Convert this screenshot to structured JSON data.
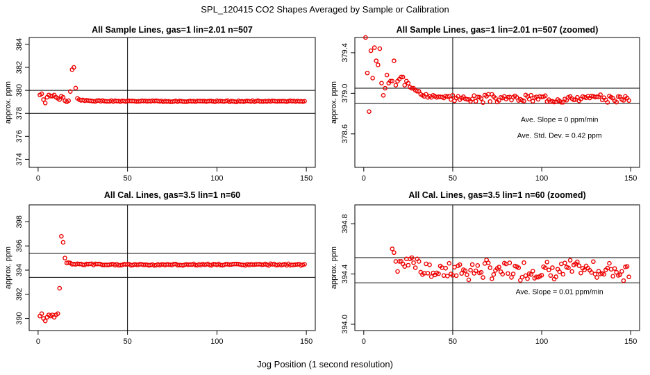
{
  "title": "SPL_120415  CO2 Shapes Averaged by Sample or Calibration",
  "xlabel": "Jog Position (1 second resolution)",
  "chart_data": [
    {
      "type": "scatter",
      "title": "All Sample Lines, gas=1 lin=2.01 n=507",
      "ylabel": "approx. ppm",
      "xlim": [
        -5,
        155
      ],
      "ylim": [
        373.3,
        384.6
      ],
      "xticks": [
        0,
        50,
        100,
        150
      ],
      "yticks": [
        374,
        376,
        378,
        380,
        382,
        384
      ],
      "xtick_labels": [
        "0",
        "50",
        "100",
        "150"
      ],
      "ytick_labels": [
        "374",
        "376",
        "378",
        "380",
        "382",
        "384"
      ],
      "hlines": [
        378,
        380
      ],
      "vlines": [
        50
      ],
      "annotations": [],
      "segments": [
        {
          "start": 1,
          "values": [
            379.6,
            379.7,
            379.2,
            378.9,
            379.4,
            379.6,
            379.5,
            379.5,
            379.6,
            379.4,
            379.3,
            379.2,
            379.5,
            379.4,
            379.1,
            379.0,
            379.1,
            379.9,
            381.8,
            382.0,
            380.2,
            379.3,
            379.2
          ]
        },
        {
          "start": 24,
          "x_end": 149,
          "n": 126,
          "base": 379.05,
          "decay": 0.08,
          "decay_tau": 8,
          "amp": 0.04,
          "seed": 1
        }
      ]
    },
    {
      "type": "scatter",
      "title": "All Sample Lines, gas=1 lin=2.01 n=507 (zoomed)",
      "ylabel": "approx. ppm",
      "xlim": [
        -5,
        155
      ],
      "ylim": [
        378.27,
        379.55
      ],
      "xticks": [
        0,
        50,
        100,
        150
      ],
      "yticks": [
        378.6,
        379.0,
        379.4
      ],
      "xtick_labels": [
        "0",
        "50",
        "100",
        "150"
      ],
      "ytick_labels": [
        "378.6",
        "379.0",
        "379.4"
      ],
      "hlines": [
        378.9,
        379.05
      ],
      "vlines": [
        50
      ],
      "annotations": [
        {
          "text": "Ave. Slope =  0  ppm/min",
          "x": 110,
          "y": 378.72
        },
        {
          "text": "Ave. Std. Dev. =  0.42  ppm",
          "x": 110,
          "y": 378.56
        }
      ],
      "segments": [
        {
          "start": 1,
          "values": [
            379.55,
            379.2,
            378.82,
            379.42,
            379.15,
            379.45,
            379.32,
            379.28,
            379.44,
            379.1,
            378.98,
            379.05,
            379.18,
            379.1,
            379.12,
            379.12,
            379.32,
            379.08,
            379.12,
            379.14,
            379.16,
            379.16,
            379.08,
            379.12,
            379.1,
            379.06,
            379.05,
            379.05,
            379.03,
            379.02,
            379.02,
            378.99,
            378.98,
            378.97,
            378.99,
            378.96,
            378.97,
            378.96,
            378.98,
            378.97,
            378.96
          ]
        },
        {
          "start": 42,
          "x_end": 149,
          "n": 108,
          "base": 378.95,
          "decay": 0.02,
          "decay_tau": 6,
          "amp": 0.03,
          "seed": 3
        }
      ]
    },
    {
      "type": "scatter",
      "title": "All Cal. Lines, gas=3.5 lin=1 n=60",
      "ylabel": "approx. ppm",
      "xlim": [
        -5,
        155
      ],
      "ylim": [
        389.0,
        399.4
      ],
      "xticks": [
        0,
        50,
        100,
        150
      ],
      "yticks": [
        390,
        392,
        394,
        396,
        398
      ],
      "xtick_labels": [
        "0",
        "50",
        "100",
        "150"
      ],
      "ytick_labels": [
        "390",
        "392",
        "394",
        "396",
        "398"
      ],
      "hlines": [
        393.4,
        395.4
      ],
      "vlines": [
        50
      ],
      "annotations": [],
      "segments": [
        {
          "start": 1,
          "values": [
            390.2,
            390.4,
            390.0,
            389.8,
            390.1,
            390.3,
            390.2,
            390.3,
            390.1,
            390.3,
            390.4,
            392.5,
            396.8,
            396.3,
            395.0,
            394.6
          ]
        },
        {
          "start": 17,
          "x_end": 149,
          "n": 133,
          "base": 394.45,
          "decay": 0.12,
          "decay_tau": 5,
          "amp": 0.06,
          "seed": 5
        }
      ]
    },
    {
      "type": "scatter",
      "title": "All Cal. Lines, gas=3.5 lin=1 n=60 (zoomed)",
      "ylabel": "approx. ppm",
      "xlim": [
        -5,
        155
      ],
      "ylim": [
        393.95,
        394.95
      ],
      "xticks": [
        0,
        50,
        100,
        150
      ],
      "yticks": [
        394.0,
        394.4,
        394.8
      ],
      "xtick_labels": [
        "0",
        "50",
        "100",
        "150"
      ],
      "ytick_labels": [
        "394.0",
        "394.4",
        "394.8"
      ],
      "hlines": [
        394.33,
        394.53
      ],
      "vlines": [
        50
      ],
      "annotations": [
        {
          "text": "Ave. Slope =  0.01  ppm/min",
          "x": 110,
          "y": 394.24
        }
      ],
      "segments": [
        {
          "start": 16,
          "values": [
            394.6,
            394.57,
            394.5,
            394.42,
            394.5,
            394.5,
            394.48,
            394.46,
            394.52,
            394.47,
            394.52,
            394.53,
            394.49,
            394.45,
            394.52,
            394.5
          ]
        },
        {
          "start": 32,
          "x_end": 149,
          "n": 118,
          "base": 394.43,
          "decay": 0.0,
          "decay_tau": 1,
          "amp": 0.06,
          "seed": 7
        }
      ]
    }
  ]
}
